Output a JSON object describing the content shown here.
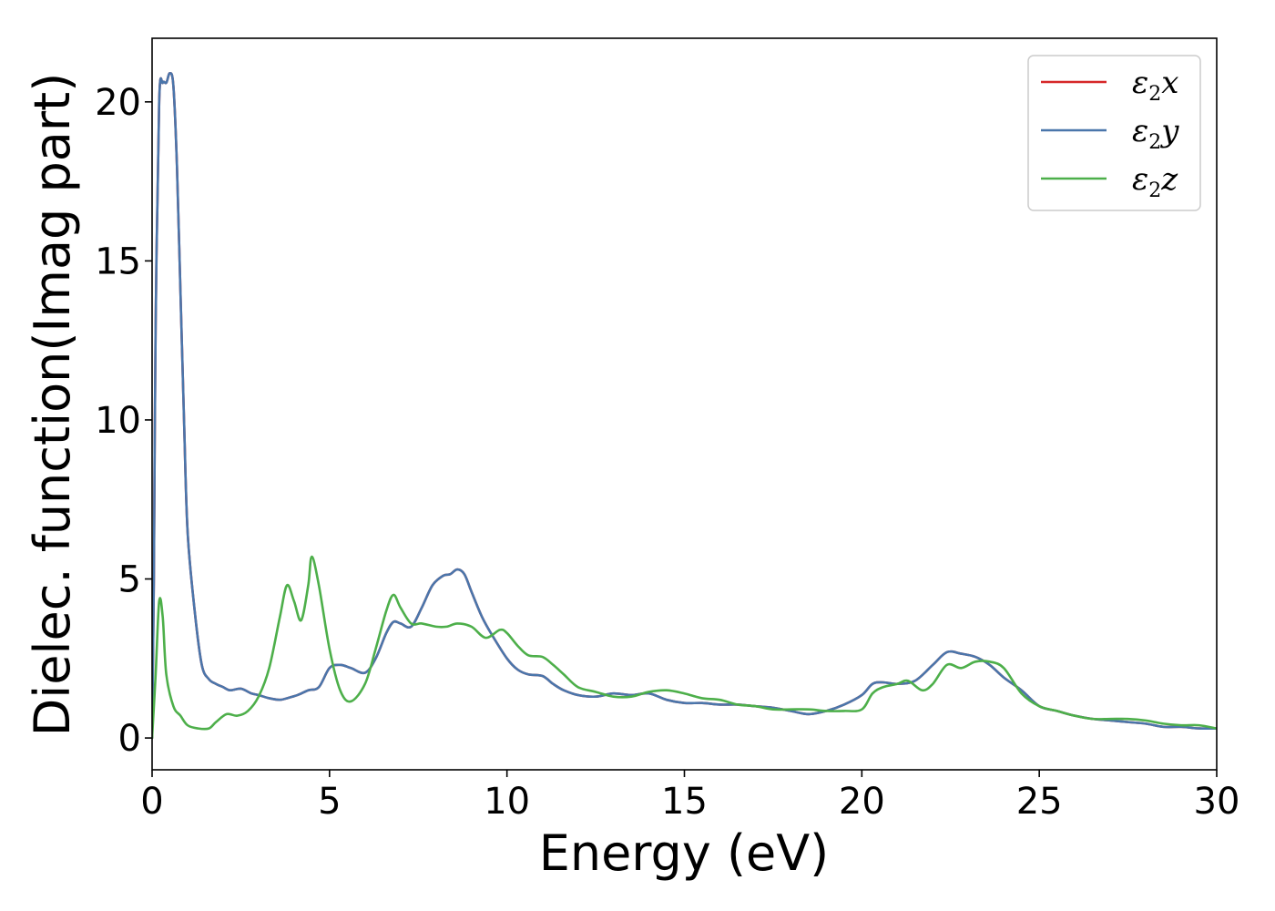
{
  "chart_data": {
    "type": "line",
    "title": "",
    "xlabel": "Energy (eV)",
    "ylabel": "Dielec. function(Imag part)",
    "xlim": [
      0,
      30
    ],
    "ylim": [
      -1,
      22
    ],
    "xticks": [
      0,
      5,
      10,
      15,
      20,
      25,
      30
    ],
    "yticks": [
      0,
      5,
      10,
      15,
      20
    ],
    "grid": false,
    "legend_position": "top-right",
    "series": [
      {
        "name": "ε₂x",
        "legend_base": "ε",
        "legend_sub": "2",
        "legend_var": "x",
        "color": "#d62728",
        "x": [
          0,
          0.05,
          0.1,
          0.2,
          0.3,
          0.4,
          0.5,
          0.6,
          0.7,
          0.8,
          0.9,
          1.0,
          1.2,
          1.4,
          1.6,
          1.8,
          2.0,
          2.2,
          2.5,
          2.8,
          3.0,
          3.3,
          3.6,
          3.8,
          4.1,
          4.4,
          4.7,
          5.0,
          5.3,
          5.6,
          6.0,
          6.3,
          6.6,
          6.8,
          7.0,
          7.3,
          7.6,
          7.9,
          8.2,
          8.4,
          8.6,
          8.8,
          9.0,
          9.3,
          9.6,
          10.0,
          10.3,
          10.6,
          11.0,
          11.3,
          11.6,
          12.0,
          12.5,
          13.0,
          13.5,
          14.0,
          14.5,
          15.0,
          15.5,
          16.0,
          16.5,
          17.0,
          17.5,
          18.0,
          18.5,
          19.0,
          19.5,
          20.0,
          20.3,
          20.6,
          21.0,
          21.5,
          22.0,
          22.4,
          22.8,
          23.2,
          23.6,
          24.0,
          24.5,
          25.0,
          25.5,
          26.0,
          26.5,
          27.0,
          27.5,
          28.0,
          28.5,
          29.0,
          29.5,
          30.0
        ],
        "y": [
          0.0,
          5.0,
          13.0,
          20.0,
          20.6,
          20.6,
          20.9,
          20.5,
          18.0,
          14.0,
          10.0,
          6.5,
          4.0,
          2.3,
          1.85,
          1.7,
          1.6,
          1.5,
          1.55,
          1.4,
          1.35,
          1.25,
          1.2,
          1.25,
          1.35,
          1.5,
          1.6,
          2.2,
          2.3,
          2.2,
          2.05,
          2.5,
          3.3,
          3.65,
          3.6,
          3.5,
          4.1,
          4.8,
          5.1,
          5.15,
          5.3,
          5.15,
          4.6,
          3.8,
          3.2,
          2.5,
          2.15,
          2.0,
          1.95,
          1.7,
          1.5,
          1.35,
          1.3,
          1.4,
          1.35,
          1.4,
          1.2,
          1.1,
          1.1,
          1.05,
          1.05,
          1.0,
          0.95,
          0.85,
          0.75,
          0.85,
          1.05,
          1.35,
          1.7,
          1.75,
          1.7,
          1.8,
          2.3,
          2.7,
          2.65,
          2.55,
          2.3,
          1.9,
          1.5,
          1.0,
          0.85,
          0.7,
          0.6,
          0.55,
          0.5,
          0.45,
          0.35,
          0.35,
          0.3,
          0.3
        ]
      },
      {
        "name": "ε₂y",
        "legend_base": "ε",
        "legend_sub": "2",
        "legend_var": "y",
        "color": "#4a76ab",
        "x": [
          0,
          0.05,
          0.1,
          0.2,
          0.3,
          0.4,
          0.5,
          0.6,
          0.7,
          0.8,
          0.9,
          1.0,
          1.2,
          1.4,
          1.6,
          1.8,
          2.0,
          2.2,
          2.5,
          2.8,
          3.0,
          3.3,
          3.6,
          3.8,
          4.1,
          4.4,
          4.7,
          5.0,
          5.3,
          5.6,
          6.0,
          6.3,
          6.6,
          6.8,
          7.0,
          7.3,
          7.6,
          7.9,
          8.2,
          8.4,
          8.6,
          8.8,
          9.0,
          9.3,
          9.6,
          10.0,
          10.3,
          10.6,
          11.0,
          11.3,
          11.6,
          12.0,
          12.5,
          13.0,
          13.5,
          14.0,
          14.5,
          15.0,
          15.5,
          16.0,
          16.5,
          17.0,
          17.5,
          18.0,
          18.5,
          19.0,
          19.5,
          20.0,
          20.3,
          20.6,
          21.0,
          21.5,
          22.0,
          22.4,
          22.8,
          23.2,
          23.6,
          24.0,
          24.5,
          25.0,
          25.5,
          26.0,
          26.5,
          27.0,
          27.5,
          28.0,
          28.5,
          29.0,
          29.5,
          30.0
        ],
        "y": [
          0.0,
          5.0,
          13.0,
          20.0,
          20.6,
          20.6,
          20.9,
          20.5,
          18.0,
          14.0,
          10.0,
          6.5,
          4.0,
          2.3,
          1.85,
          1.7,
          1.6,
          1.5,
          1.55,
          1.4,
          1.35,
          1.25,
          1.2,
          1.25,
          1.35,
          1.5,
          1.6,
          2.2,
          2.3,
          2.2,
          2.05,
          2.5,
          3.3,
          3.65,
          3.6,
          3.5,
          4.1,
          4.8,
          5.1,
          5.15,
          5.3,
          5.15,
          4.6,
          3.8,
          3.2,
          2.5,
          2.15,
          2.0,
          1.95,
          1.7,
          1.5,
          1.35,
          1.3,
          1.4,
          1.35,
          1.4,
          1.2,
          1.1,
          1.1,
          1.05,
          1.05,
          1.0,
          0.95,
          0.85,
          0.75,
          0.85,
          1.05,
          1.35,
          1.7,
          1.75,
          1.7,
          1.8,
          2.3,
          2.7,
          2.65,
          2.55,
          2.3,
          1.9,
          1.5,
          1.0,
          0.85,
          0.7,
          0.6,
          0.55,
          0.5,
          0.45,
          0.35,
          0.35,
          0.3,
          0.3
        ]
      },
      {
        "name": "ε₂z",
        "legend_base": "ε",
        "legend_sub": "2",
        "legend_var": "z",
        "color": "#4daf4a",
        "x": [
          0,
          0.1,
          0.2,
          0.3,
          0.4,
          0.6,
          0.8,
          1.0,
          1.3,
          1.6,
          1.8,
          2.1,
          2.4,
          2.7,
          3.0,
          3.3,
          3.6,
          3.8,
          4.0,
          4.2,
          4.4,
          4.5,
          4.7,
          5.0,
          5.3,
          5.6,
          6.0,
          6.3,
          6.6,
          6.8,
          7.0,
          7.3,
          7.6,
          8.0,
          8.3,
          8.6,
          9.0,
          9.4,
          9.8,
          10.0,
          10.3,
          10.6,
          11.0,
          11.3,
          11.6,
          12.0,
          12.5,
          13.0,
          13.5,
          14.0,
          14.5,
          15.0,
          15.5,
          16.0,
          16.5,
          17.0,
          17.5,
          18.0,
          18.5,
          19.0,
          19.5,
          20.0,
          20.3,
          20.6,
          21.0,
          21.3,
          21.7,
          22.0,
          22.4,
          22.8,
          23.2,
          23.6,
          24.0,
          24.5,
          25.0,
          25.5,
          26.0,
          26.5,
          27.0,
          27.5,
          28.0,
          28.5,
          29.0,
          29.5,
          30.0
        ],
        "y": [
          0.0,
          2.0,
          4.3,
          3.8,
          2.0,
          1.0,
          0.7,
          0.4,
          0.3,
          0.3,
          0.5,
          0.75,
          0.7,
          0.85,
          1.3,
          2.2,
          3.8,
          4.8,
          4.3,
          3.7,
          4.8,
          5.7,
          4.8,
          2.8,
          1.5,
          1.15,
          1.7,
          2.8,
          4.0,
          4.5,
          4.1,
          3.6,
          3.6,
          3.5,
          3.5,
          3.6,
          3.5,
          3.15,
          3.4,
          3.3,
          2.9,
          2.6,
          2.55,
          2.3,
          2.0,
          1.6,
          1.45,
          1.3,
          1.3,
          1.45,
          1.5,
          1.4,
          1.25,
          1.2,
          1.05,
          1.0,
          0.9,
          0.9,
          0.9,
          0.85,
          0.85,
          0.9,
          1.4,
          1.6,
          1.7,
          1.8,
          1.5,
          1.7,
          2.3,
          2.2,
          2.4,
          2.4,
          2.2,
          1.4,
          1.0,
          0.85,
          0.7,
          0.6,
          0.6,
          0.6,
          0.55,
          0.45,
          0.4,
          0.4,
          0.3
        ]
      }
    ]
  }
}
